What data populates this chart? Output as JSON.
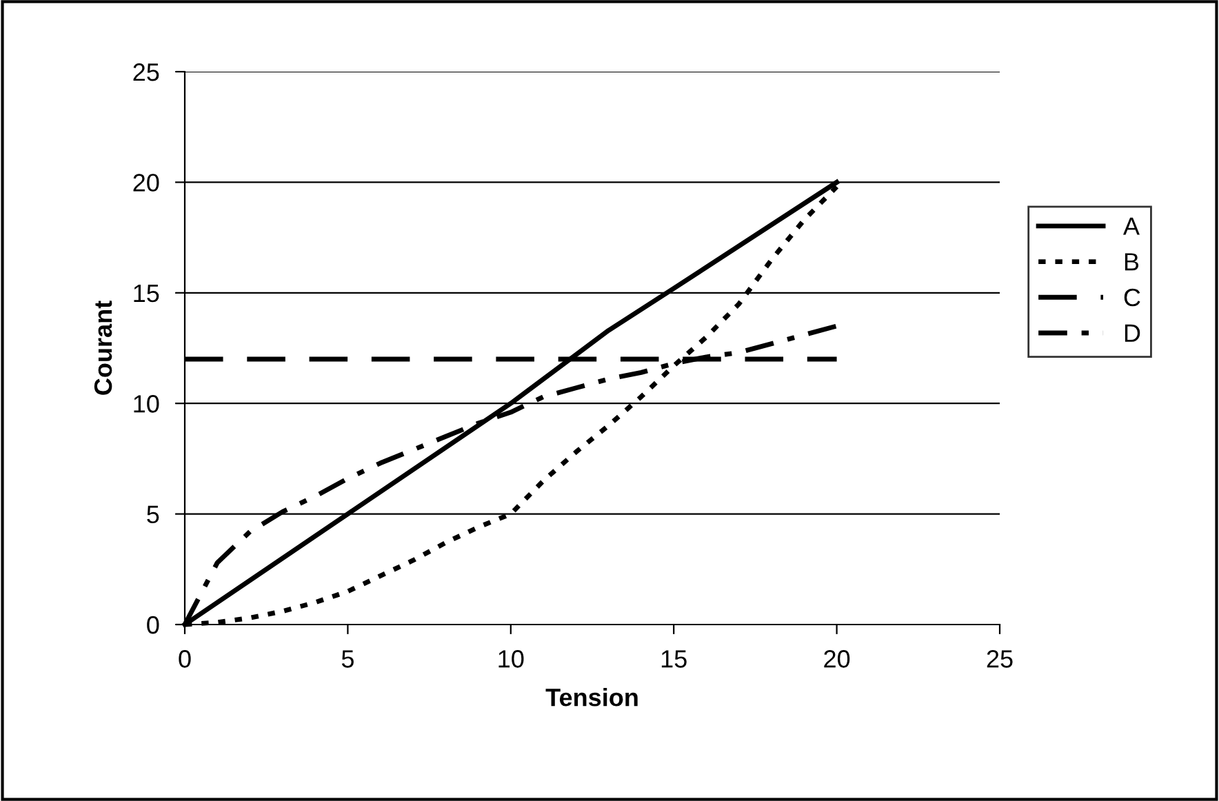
{
  "chart_data": {
    "type": "line",
    "xlabel": "Tension",
    "ylabel": "Courant",
    "xlim": [
      0,
      25
    ],
    "xticks": [
      0,
      5,
      10,
      15,
      20,
      25
    ],
    "ylim": [
      0,
      25
    ],
    "yticks": [
      0,
      5,
      10,
      15,
      20,
      25
    ],
    "grid": "y",
    "legend": "right",
    "marker": "none",
    "series": [
      {
        "name": "A",
        "color": "#000000",
        "line_style": "solid",
        "x": [
          0,
          2,
          5,
          10,
          13,
          15,
          20
        ],
        "values": [
          0,
          2,
          5,
          10,
          13.3,
          15.2,
          20
        ]
      },
      {
        "name": "B",
        "color": "#000000",
        "line_style": "dotted",
        "x": [
          0,
          1,
          2,
          3,
          4,
          5,
          6,
          7,
          8,
          9,
          10,
          11,
          12,
          13,
          14,
          15,
          16,
          17,
          18,
          19,
          20
        ],
        "values": [
          0,
          0.1,
          0.3,
          0.6,
          1,
          1.5,
          2.2,
          2.9,
          3.7,
          4.4,
          5,
          6.5,
          7.8,
          9,
          10.3,
          11.7,
          13,
          14.5,
          16.5,
          18.3,
          19.8
        ]
      },
      {
        "name": "C",
        "color": "#000000",
        "line_style": "dashed",
        "x": [
          0,
          20
        ],
        "values": [
          12,
          12
        ]
      },
      {
        "name": "D",
        "color": "#000000",
        "line_style": "dashdot",
        "x": [
          0,
          1,
          2,
          3,
          4,
          5,
          6,
          7,
          8,
          9,
          10,
          11,
          12,
          13,
          14,
          15,
          16,
          17,
          18,
          19,
          20
        ],
        "values": [
          0,
          2.8,
          4.2,
          5.1,
          5.8,
          6.6,
          7.3,
          7.9,
          8.5,
          9.1,
          9.6,
          10.3,
          10.7,
          11.1,
          11.4,
          11.8,
          12.1,
          12.3,
          12.7,
          13.1,
          13.5
        ]
      }
    ]
  }
}
